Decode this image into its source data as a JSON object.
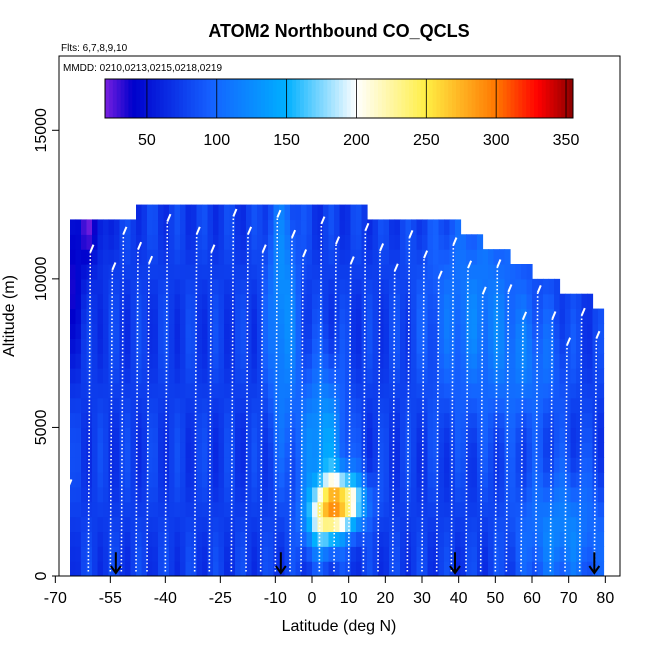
{
  "chart_data": {
    "type": "heatmap",
    "title": "ATOM2 Northbound CO_QCLS",
    "annotations": [
      "Flts: 6,7,8,9,10",
      "MMDD: 0210,0213,0215,0218,0219"
    ],
    "xlabel": "Latitude (deg N)",
    "ylabel": "Altitude (m)",
    "xlim": [
      -69,
      84
    ],
    "ylim": [
      0,
      17500
    ],
    "xticks": [
      -70,
      -55,
      -40,
      -25,
      -10,
      0,
      10,
      20,
      30,
      40,
      50,
      60,
      70,
      80
    ],
    "xtick_labels": [
      "-70",
      "-55",
      "-40",
      "-25",
      "-10",
      "0",
      "10",
      "20",
      "30",
      "40",
      "50",
      "60",
      "70",
      "80"
    ],
    "yticks": [
      0,
      5000,
      10000,
      15000
    ],
    "ytick_labels": [
      "0",
      "5000",
      "10000",
      "15000"
    ],
    "colorbar": {
      "min": 20,
      "max": 355,
      "ticks": [
        50,
        100,
        150,
        200,
        250,
        300,
        350
      ],
      "tick_labels": [
        "50",
        "100",
        "150",
        "200",
        "250",
        "300",
        "350"
      ],
      "colors": [
        "#7a1fe0",
        "#0000cc",
        "#1560ff",
        "#00b0ff",
        "#ffffff",
        "#ffee44",
        "#ff7700",
        "#ff0000",
        "#8a0000"
      ],
      "stops": [
        20,
        40,
        95,
        150,
        200,
        250,
        300,
        330,
        355
      ]
    },
    "grid": false,
    "grid_steps": {
      "lat": 1.5,
      "alt": 500
    },
    "ceiling": [
      [
        -66,
        11900
      ],
      [
        -50,
        11900
      ],
      [
        -36,
        12500
      ],
      [
        -12,
        12500
      ],
      [
        10,
        12100
      ],
      [
        25,
        11800
      ],
      [
        40,
        11500
      ],
      [
        50,
        10800
      ],
      [
        60,
        10000
      ],
      [
        70,
        9300
      ],
      [
        79,
        8900
      ],
      [
        80,
        0
      ]
    ],
    "background_value": 75,
    "anomalies": [
      {
        "lat": -68,
        "alt": 10500,
        "slat": 6,
        "salt": 3000,
        "amp": -45
      },
      {
        "lat": -60,
        "alt": 12000,
        "slat": 4,
        "salt": 1500,
        "amp": -35
      },
      {
        "lat": -8,
        "alt": 9000,
        "slat": 4,
        "salt": 4500,
        "amp": 55
      },
      {
        "lat": 3,
        "alt": 4500,
        "slat": 6,
        "salt": 2500,
        "amp": 65
      },
      {
        "lat": 8,
        "alt": 2500,
        "slat": 6,
        "salt": 900,
        "amp": 170
      },
      {
        "lat": 3,
        "alt": 1800,
        "slat": 5,
        "salt": 1000,
        "amp": 90
      },
      {
        "lat": 45,
        "alt": 9000,
        "slat": 14,
        "salt": 3500,
        "amp": 40
      },
      {
        "lat": 68,
        "alt": 1500,
        "slat": 12,
        "salt": 2000,
        "amp": 45
      },
      {
        "lat": 60,
        "alt": 7000,
        "slat": 10,
        "salt": 2000,
        "amp": 25
      }
    ],
    "profile_lats": [
      -67,
      -61,
      -55,
      -52,
      -48,
      -45,
      -40,
      -32,
      -28,
      -22,
      -18,
      -14,
      -10,
      -6,
      -3,
      2,
      6,
      10,
      14,
      18,
      22,
      26,
      30,
      34,
      38,
      42,
      46,
      50,
      53,
      57,
      61,
      65,
      69,
      73,
      77,
      80
    ],
    "arrow_lats": [
      -53.5,
      -8.5,
      39,
      77
    ]
  }
}
